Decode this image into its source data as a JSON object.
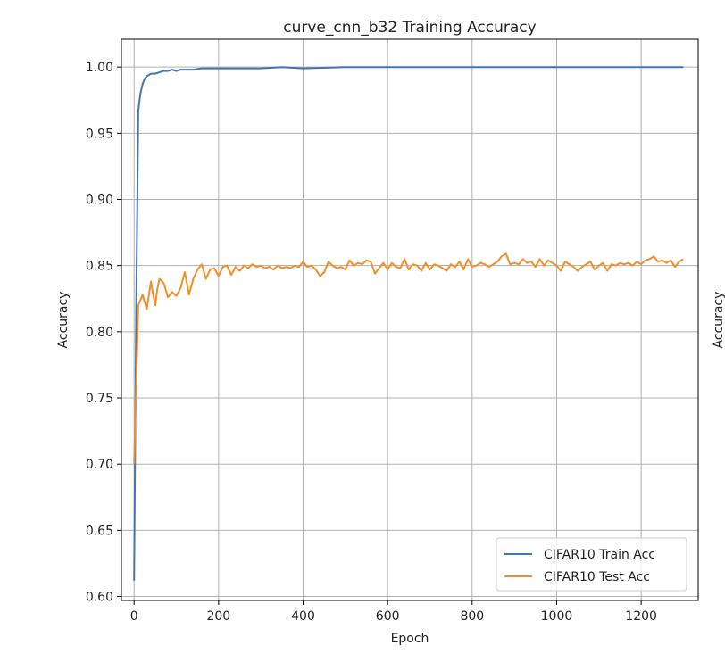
{
  "chart_data": {
    "type": "line",
    "title": "curve_cnn_b32 Training Accuracy",
    "xlabel": "Epoch",
    "ylabel": "Accuracy",
    "right_panel_ylabel": "Accuracy",
    "xlim": [
      -30,
      1335
    ],
    "ylim": [
      0.597,
      1.021
    ],
    "xticks": [
      0,
      200,
      400,
      600,
      800,
      1000,
      1200
    ],
    "yticks": [
      0.6,
      0.65,
      0.7,
      0.75,
      0.8,
      0.85,
      0.9,
      0.95,
      1.0
    ],
    "xtick_labels": [
      "0",
      "200",
      "400",
      "600",
      "800",
      "1000",
      "1200"
    ],
    "ytick_labels": [
      "0.60",
      "0.65",
      "0.70",
      "0.75",
      "0.80",
      "0.85",
      "0.90",
      "0.95",
      "1.00"
    ],
    "grid": true,
    "legend_position": "bottom-right",
    "series": [
      {
        "name": "CIFAR10 Train Acc",
        "color": "#4575b4",
        "x": [
          0,
          5,
          10,
          15,
          20,
          25,
          30,
          40,
          50,
          60,
          70,
          80,
          90,
          100,
          110,
          120,
          140,
          160,
          180,
          200,
          250,
          300,
          350,
          400,
          500,
          600,
          700,
          800,
          900,
          1000,
          1100,
          1200,
          1300
        ],
        "y": [
          0.612,
          0.82,
          0.967,
          0.98,
          0.987,
          0.991,
          0.993,
          0.995,
          0.995,
          0.996,
          0.997,
          0.997,
          0.998,
          0.997,
          0.998,
          0.998,
          0.998,
          0.999,
          0.999,
          0.999,
          0.999,
          0.999,
          1.0,
          0.999,
          1.0,
          1.0,
          1.0,
          1.0,
          1.0,
          1.0,
          1.0,
          1.0,
          1.0
        ]
      },
      {
        "name": "CIFAR10 Test Acc",
        "color": "#f28e2b",
        "x": [
          0,
          5,
          10,
          20,
          30,
          40,
          45,
          50,
          55,
          60,
          70,
          80,
          90,
          100,
          110,
          120,
          130,
          140,
          150,
          160,
          170,
          180,
          190,
          200,
          210,
          220,
          230,
          240,
          250,
          260,
          270,
          280,
          290,
          300,
          310,
          320,
          330,
          340,
          350,
          360,
          370,
          380,
          390,
          400,
          410,
          420,
          430,
          440,
          450,
          460,
          470,
          480,
          490,
          500,
          510,
          520,
          530,
          540,
          550,
          560,
          570,
          580,
          590,
          600,
          610,
          620,
          630,
          640,
          650,
          660,
          670,
          680,
          690,
          700,
          710,
          720,
          730,
          740,
          750,
          760,
          770,
          780,
          790,
          800,
          810,
          820,
          830,
          840,
          850,
          860,
          870,
          880,
          890,
          900,
          910,
          920,
          930,
          940,
          950,
          960,
          970,
          980,
          990,
          1000,
          1010,
          1020,
          1030,
          1040,
          1050,
          1060,
          1070,
          1080,
          1090,
          1100,
          1110,
          1120,
          1130,
          1140,
          1150,
          1160,
          1170,
          1180,
          1190,
          1200,
          1210,
          1220,
          1230,
          1240,
          1250,
          1260,
          1270,
          1280,
          1290,
          1300
        ],
        "y": [
          0.7,
          0.76,
          0.82,
          0.828,
          0.817,
          0.838,
          0.828,
          0.82,
          0.832,
          0.84,
          0.837,
          0.826,
          0.83,
          0.827,
          0.833,
          0.845,
          0.828,
          0.84,
          0.847,
          0.851,
          0.84,
          0.847,
          0.848,
          0.842,
          0.849,
          0.85,
          0.843,
          0.849,
          0.846,
          0.85,
          0.848,
          0.851,
          0.849,
          0.85,
          0.848,
          0.849,
          0.847,
          0.85,
          0.848,
          0.849,
          0.848,
          0.85,
          0.849,
          0.853,
          0.849,
          0.85,
          0.847,
          0.842,
          0.845,
          0.853,
          0.85,
          0.848,
          0.849,
          0.847,
          0.854,
          0.85,
          0.852,
          0.851,
          0.854,
          0.853,
          0.844,
          0.848,
          0.852,
          0.847,
          0.852,
          0.849,
          0.848,
          0.855,
          0.847,
          0.851,
          0.85,
          0.846,
          0.852,
          0.847,
          0.851,
          0.85,
          0.848,
          0.846,
          0.851,
          0.849,
          0.853,
          0.847,
          0.855,
          0.849,
          0.85,
          0.852,
          0.851,
          0.849,
          0.851,
          0.853,
          0.857,
          0.859,
          0.851,
          0.852,
          0.851,
          0.855,
          0.852,
          0.853,
          0.849,
          0.855,
          0.85,
          0.854,
          0.852,
          0.85,
          0.846,
          0.853,
          0.851,
          0.849,
          0.846,
          0.849,
          0.851,
          0.853,
          0.847,
          0.85,
          0.852,
          0.846,
          0.851,
          0.85,
          0.852,
          0.851,
          0.852,
          0.85,
          0.853,
          0.851,
          0.854,
          0.855,
          0.857,
          0.853,
          0.854,
          0.852,
          0.854,
          0.849,
          0.853,
          0.855
        ]
      }
    ]
  }
}
